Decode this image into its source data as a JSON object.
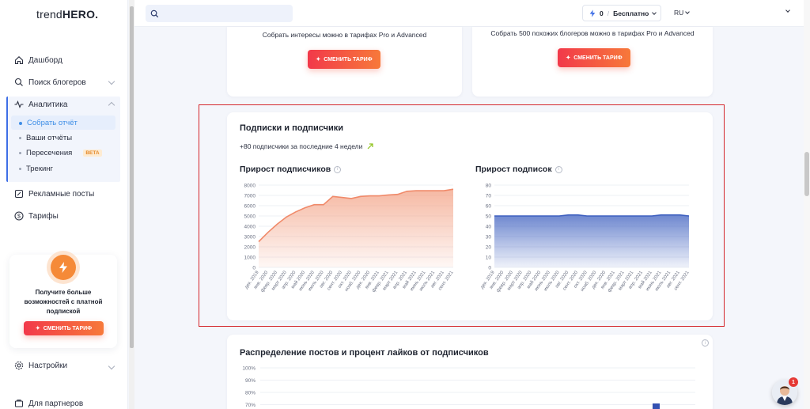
{
  "app": {
    "logo_prefix": "trend",
    "logo_main": "HERO."
  },
  "sidebar": {
    "items": [
      {
        "label": "Дашборд",
        "icon": "home-icon"
      },
      {
        "label": "Поиск блогеров",
        "icon": "search-icon"
      },
      {
        "label": "Аналитика",
        "icon": "pulse-icon"
      }
    ],
    "analytics_sub": [
      {
        "label": "Собрать отчёт",
        "active": true
      },
      {
        "label": "Ваши отчёты"
      },
      {
        "label": "Пересечения",
        "badge": "BETA"
      },
      {
        "label": "Трекинг"
      }
    ],
    "items_after": [
      {
        "label": "Рекламные посты",
        "icon": "ad-icon"
      },
      {
        "label": "Тарифы",
        "icon": "dollar-icon"
      }
    ],
    "promo": {
      "text": "Получите больше возможностей с платной подпиской",
      "button": "Сменить тариф"
    },
    "settings": "Настройки",
    "partners": "Для партнеров"
  },
  "topbar": {
    "search_placeholder": "",
    "balance": "0",
    "plan": "Бесплатно",
    "lang": "RU"
  },
  "upsell_cards": [
    {
      "text": "Собрать интересы можно в тарифах Pro и Advanced",
      "button": "Сменить тариф"
    },
    {
      "text": "Собрать 500 похожих блогеров можно в тарифах Pro и Advanced",
      "button": "Сменить тариф"
    }
  ],
  "subscriptions_card": {
    "title": "Подписки и подписчики",
    "growth_text": "+80 подписчики за последние 4 недели"
  },
  "distribution_card": {
    "title": "Распределение постов и процент лайков от подписчиков"
  },
  "chat": {
    "badge": "1"
  },
  "chart_data": [
    {
      "type": "area",
      "title": "Прирост подписчиков",
      "color": "#f3a184",
      "ylim": [
        0,
        8000
      ],
      "yticks": [
        0,
        1000,
        2000,
        3000,
        4000,
        5000,
        6000,
        7000,
        8000
      ],
      "x": [
        "дек. 2019",
        "янв. 2020",
        "февр. 2020",
        "март 2020",
        "апр. 2020",
        "май 2020",
        "июнь 2020",
        "июль 2020",
        "авг. 2020",
        "сент. 2020",
        "окт. 2020",
        "нояб. 2020",
        "дек. 2020",
        "янв. 2021",
        "февр. 2021",
        "март 2021",
        "апр. 2021",
        "май 2021",
        "июнь 2021",
        "июль 2021",
        "авг. 2021",
        "сент. 2021"
      ],
      "values": [
        2500,
        3400,
        4200,
        4900,
        5400,
        5800,
        6100,
        6100,
        6900,
        6800,
        6700,
        6900,
        6950,
        6950,
        7050,
        7100,
        7400,
        7450,
        7450,
        7450,
        7450,
        7600
      ]
    },
    {
      "type": "area",
      "title": "Прирост подписок",
      "color": "#3d5fbf",
      "ylim": [
        0,
        80
      ],
      "yticks": [
        0,
        10,
        20,
        30,
        40,
        50,
        60,
        70,
        80
      ],
      "x": [
        "дек. 2019",
        "янв. 2020",
        "февр. 2020",
        "март 2020",
        "апр. 2020",
        "май 2020",
        "июнь 2020",
        "июль 2020",
        "авг. 2020",
        "сент. 2020",
        "окт. 2020",
        "нояб. 2020",
        "дек. 2020",
        "янв. 2021",
        "февр. 2021",
        "март 2021",
        "апр. 2021",
        "май 2021",
        "июнь 2021",
        "июль 2021",
        "авг. 2021",
        "сент. 2021"
      ],
      "values": [
        50,
        50,
        50,
        50,
        50,
        50,
        50,
        50,
        51,
        51,
        50,
        50,
        50,
        50,
        50,
        50,
        50,
        50,
        51,
        51,
        51,
        50
      ]
    },
    {
      "type": "bar",
      "yticks": [
        "100%",
        "90%",
        "80%",
        "70%"
      ]
    }
  ]
}
